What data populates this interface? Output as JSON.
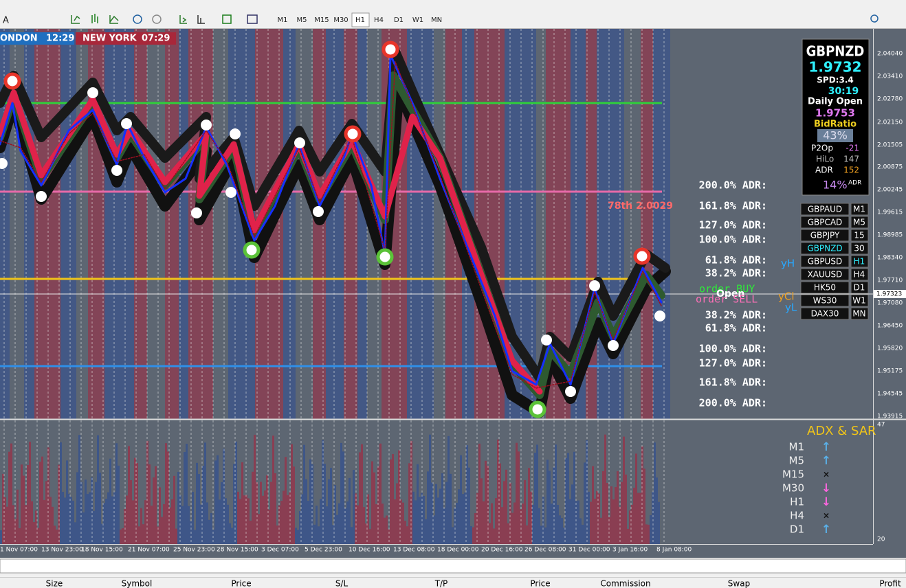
{
  "toolbar": {
    "font_button": "A",
    "timeframes": [
      "M1",
      "M5",
      "M15",
      "M30",
      "H1",
      "H4",
      "D1",
      "W1",
      "MN"
    ]
  },
  "sessions": [
    {
      "name": "ONDON",
      "time": "12:29"
    },
    {
      "name": "NEW YORK",
      "time": "07:29"
    }
  ],
  "price_axis": [
    "2.04040",
    "2.03410",
    "2.02780",
    "2.02150",
    "2.01505",
    "2.00875",
    "2.00245",
    "1.99615",
    "1.98985",
    "1.98340",
    "1.97710",
    "1.97080",
    "1.96450",
    "1.95820",
    "1.95175",
    "1.94545",
    "1.93915"
  ],
  "current_price": "1.97323",
  "indicator_axis": [
    "47",
    "20"
  ],
  "time_axis": [
    "1 Nov 07:00",
    "13 Nov 23:00",
    "18 Nov 15:00",
    "21 Nov 07:00",
    "25 Nov 23:00",
    "28 Nov 15:00",
    "3 Dec 07:00",
    "5 Dec 23:00",
    "10 Dec 16:00",
    "13 Dec 08:00",
    "18 Dec 00:00",
    "20 Dec 16:00",
    "26 Dec 08:00",
    "31 Dec 00:00",
    "3 Jan 16:00",
    "8 Jan 08:00"
  ],
  "adr_levels": [
    "200.0% ADR:",
    "161.8% ADR:",
    "127.0% ADR:",
    "100.0% ADR:",
    "61.8% ADR:",
    "38.2% ADR:",
    "38.2% ADR:",
    "61.8% ADR:",
    "100.0% ADR:",
    "127.0% ADR:",
    "161.8% ADR:",
    "200.0% ADR:"
  ],
  "order_labels": {
    "buy": "order BUY",
    "open": "Open",
    "sell": "order SELL"
  },
  "overlay_label": "78th 2.0029",
  "yday_labels": {
    "high": "yH",
    "close": "yCl",
    "low": "yL"
  },
  "info_panel": {
    "symbol": "GBPNZD",
    "bid": "1.9732",
    "spread": "SPD:3.4",
    "timer": "30:19",
    "daily_open_label": "Daily Open",
    "daily_open": "1.9753",
    "bid_ratio_label": "BidRatio",
    "bid_ratio": "43%",
    "p2op_label": "P2Op",
    "p2op": "-21",
    "hilo_label": "HiLo",
    "hilo": "147",
    "adr_label": "ADR",
    "adr": "152",
    "adr_pct": "14%",
    "adr_pct_unit": "ADR"
  },
  "symbols": [
    {
      "symbol": "GBPAUD",
      "timeframe": "M1"
    },
    {
      "symbol": "GBPCAD",
      "timeframe": "M5"
    },
    {
      "symbol": "GBPJPY",
      "timeframe": "15"
    },
    {
      "symbol": "GBPNZD",
      "timeframe": "30"
    },
    {
      "symbol": "GBPUSD",
      "timeframe": "H1"
    },
    {
      "symbol": "XAUUSD",
      "timeframe": "H4"
    },
    {
      "symbol": "HK50",
      "timeframe": "D1"
    },
    {
      "symbol": "WS30",
      "timeframe": "W1"
    },
    {
      "symbol": "DAX30",
      "timeframe": "MN"
    }
  ],
  "adx_panel": {
    "title": "ADX & SAR",
    "rows": [
      {
        "timeframe": "M1",
        "signal": "↑"
      },
      {
        "timeframe": "M5",
        "signal": "↑"
      },
      {
        "timeframe": "M15",
        "signal": "×"
      },
      {
        "timeframe": "M30",
        "signal": "↓"
      },
      {
        "timeframe": "H1",
        "signal": "↓"
      },
      {
        "timeframe": "H4",
        "signal": "×"
      },
      {
        "timeframe": "D1",
        "signal": "↑"
      }
    ]
  },
  "terminal_columns": [
    "Size",
    "Symbol",
    "Price",
    "S/L",
    "T/P",
    "Price",
    "Commission",
    "Swap",
    "Profit"
  ]
}
